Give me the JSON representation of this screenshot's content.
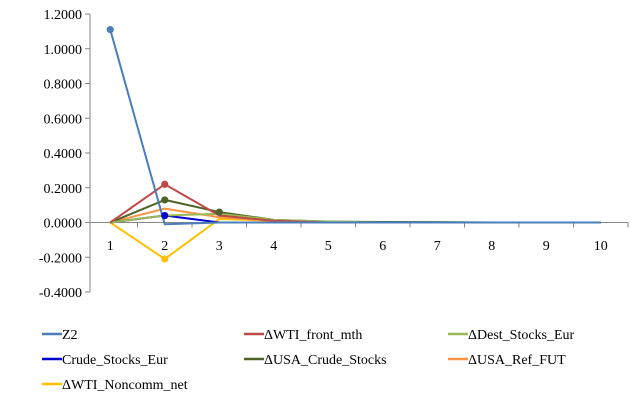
{
  "chart_data": {
    "type": "line",
    "title": "",
    "xlabel": "",
    "ylabel": "",
    "x": [
      1,
      2,
      3,
      4,
      5,
      6,
      7,
      8,
      9,
      10
    ],
    "x_tick_labels": [
      "1",
      "2",
      "3",
      "4",
      "5",
      "6",
      "7",
      "8",
      "9",
      "10"
    ],
    "ylim": [
      -0.4,
      1.2
    ],
    "y_ticks": [
      -0.4,
      -0.2,
      0.0,
      0.2,
      0.4,
      0.6,
      0.8,
      1.0,
      1.2
    ],
    "y_tick_labels": [
      "-0.4000",
      "-0.2000",
      "0.0000",
      "0.2000",
      "0.4000",
      "0.6000",
      "0.8000",
      "1.0000",
      "1.2000"
    ],
    "grid": false,
    "legend_position": "bottom",
    "series": [
      {
        "name": "Z2",
        "color": "#4a7ebb",
        "marker_at": [
          1
        ],
        "values": [
          1.11,
          -0.01,
          0.0,
          0.0,
          0.0,
          0.0,
          0.0,
          0.0,
          0.0,
          0.0
        ]
      },
      {
        "name": "ΔWTI_front_mth",
        "color": "#be4b48",
        "marker_at": [
          2
        ],
        "values": [
          0.0,
          0.22,
          0.04,
          0.01,
          0.0,
          0.0,
          0.0,
          0.0,
          0.0,
          0.0
        ]
      },
      {
        "name": "ΔDest_Stocks_Eur",
        "color": "#98b954",
        "marker_at": [],
        "values": [
          0.0,
          0.04,
          0.05,
          0.015,
          0.005,
          0.0,
          0.0,
          0.0,
          0.0,
          0.0
        ]
      },
      {
        "name": "Crude_Stocks_Eur",
        "color": "#0000d0",
        "marker_at": [
          2
        ],
        "values": [
          0.0,
          0.04,
          0.0,
          0.0,
          0.0,
          0.0,
          0.0,
          0.0,
          0.0,
          0.0
        ]
      },
      {
        "name": "ΔUSA_Crude_Stocks",
        "color": "#4f6228",
        "marker_at": [
          2,
          3
        ],
        "values": [
          0.0,
          0.13,
          0.06,
          0.015,
          0.005,
          0.003,
          0.002,
          0.0,
          0.0,
          0.0
        ]
      },
      {
        "name": "ΔUSA_Ref_FUT",
        "color": "#f79646",
        "marker_at": [],
        "values": [
          0.0,
          0.08,
          0.03,
          0.01,
          0.0,
          0.0,
          0.0,
          0.0,
          0.0,
          0.0
        ]
      },
      {
        "name": "ΔWTI_Noncomm_net",
        "color": "#ffc000",
        "marker_at": [
          2
        ],
        "values": [
          0.0,
          -0.21,
          0.02,
          0.01,
          0.0,
          0.0,
          0.0,
          0.0,
          0.0,
          0.0
        ]
      }
    ]
  }
}
